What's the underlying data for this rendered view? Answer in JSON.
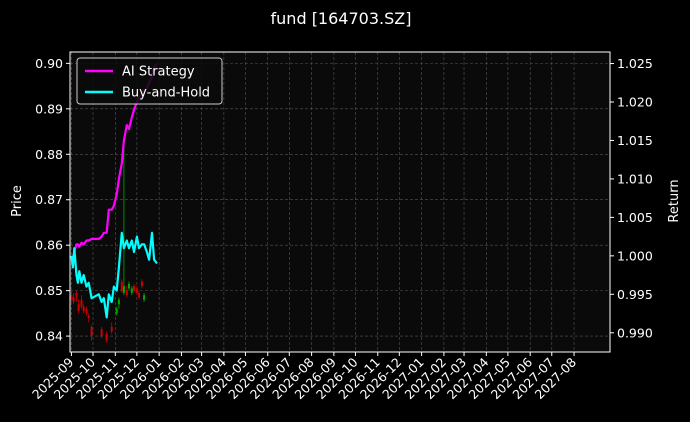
{
  "chart_data": {
    "type": "line",
    "title": "fund [164703.SZ]",
    "ylabel_left": "Price",
    "ylabel_right": "Return",
    "ylim_left": [
      0.8365,
      0.9025
    ],
    "ylim_right": [
      0.9875,
      1.0265
    ],
    "yticks_left": [
      0.84,
      0.85,
      0.86,
      0.87,
      0.88,
      0.89,
      0.9
    ],
    "yticks_left_labels": [
      "0.84",
      "0.85",
      "0.86",
      "0.87",
      "0.88",
      "0.89",
      "0.90"
    ],
    "yticks_right": [
      0.99,
      0.995,
      1.0,
      1.005,
      1.01,
      1.015,
      1.02,
      1.025
    ],
    "yticks_right_labels": [
      "0.990",
      "0.995",
      "1.000",
      "1.005",
      "1.010",
      "1.015",
      "1.020",
      "1.025"
    ],
    "xlim": [
      "2025-08-30",
      "2027-09-20"
    ],
    "xticks": [
      "2025-09",
      "2025-10",
      "2025-11",
      "2025-12",
      "2026-01",
      "2026-02",
      "2026-03",
      "2026-04",
      "2026-05",
      "2026-06",
      "2026-07",
      "2026-08",
      "2026-09",
      "2026-10",
      "2026-11",
      "2026-12",
      "2027-01",
      "2027-02",
      "2027-03",
      "2027-04",
      "2027-05",
      "2027-06",
      "2027-07",
      "2027-08"
    ],
    "grid": true,
    "legend_position": "top-left",
    "background": "#0a0a0a",
    "series": [
      {
        "name": "AI Strategy",
        "color": "#ff00ff",
        "axis": "right",
        "x": [
          "2025-09-01",
          "2025-09-03",
          "2025-09-05",
          "2025-09-08",
          "2025-09-10",
          "2025-09-12",
          "2025-09-15",
          "2025-09-18",
          "2025-09-22",
          "2025-09-25",
          "2025-09-29",
          "2025-10-09",
          "2025-10-13",
          "2025-10-16",
          "2025-10-20",
          "2025-10-23",
          "2025-10-27",
          "2025-10-30",
          "2025-11-03",
          "2025-11-06",
          "2025-11-10",
          "2025-11-13",
          "2025-11-17",
          "2025-11-20",
          "2025-11-24",
          "2025-11-27",
          "2025-12-01",
          "2025-12-04",
          "2025-12-08",
          "2025-12-11",
          "2025-12-15",
          "2025-12-18",
          "2025-12-22",
          "2025-12-25",
          "2025-12-29"
        ],
        "values": [
          1.0,
          0.9995,
          1.0005,
          1.0015,
          1.0015,
          1.0012,
          1.0017,
          1.0015,
          1.002,
          1.002,
          1.0022,
          1.0022,
          1.0025,
          1.003,
          1.003,
          1.006,
          1.006,
          1.0065,
          1.008,
          1.01,
          1.012,
          1.015,
          1.017,
          1.0165,
          1.018,
          1.019,
          1.02,
          1.0205,
          1.021,
          1.0215,
          1.0218,
          1.0225,
          1.0232,
          1.0245,
          1.025
        ]
      },
      {
        "name": "Buy-and-Hold",
        "color": "#00ffff",
        "axis": "right",
        "x": [
          "2025-09-01",
          "2025-09-03",
          "2025-09-05",
          "2025-09-08",
          "2025-09-10",
          "2025-09-12",
          "2025-09-15",
          "2025-09-18",
          "2025-09-22",
          "2025-09-25",
          "2025-09-29",
          "2025-10-09",
          "2025-10-13",
          "2025-10-16",
          "2025-10-20",
          "2025-10-23",
          "2025-10-27",
          "2025-10-30",
          "2025-11-03",
          "2025-11-06",
          "2025-11-10",
          "2025-11-13",
          "2025-11-17",
          "2025-11-20",
          "2025-11-24",
          "2025-11-27",
          "2025-12-01",
          "2025-12-04",
          "2025-12-08",
          "2025-12-11",
          "2025-12-15",
          "2025-12-18",
          "2025-12-22",
          "2025-12-25",
          "2025-12-29"
        ],
        "values": [
          1.0,
          0.9985,
          1.001,
          0.9975,
          0.9965,
          0.998,
          0.9965,
          0.9975,
          0.996,
          0.9965,
          0.9945,
          0.995,
          0.994,
          0.9945,
          0.992,
          0.995,
          0.994,
          0.996,
          0.9955,
          0.9985,
          1.003,
          1.001,
          1.002,
          1.001,
          1.002,
          1.0005,
          1.0025,
          1.001,
          1.0015,
          1.0015,
          1.0005,
          0.9995,
          1.003,
          0.9995,
          0.999
        ]
      }
    ],
    "candles": [
      {
        "date": "2025-09-01",
        "open": 0.849,
        "close": 0.848,
        "high": 0.85,
        "low": 0.8475,
        "color": "#cc0000"
      },
      {
        "date": "2025-09-04",
        "open": 0.8485,
        "close": 0.8475,
        "high": 0.8495,
        "low": 0.847,
        "color": "#cc0000"
      },
      {
        "date": "2025-09-08",
        "open": 0.8495,
        "close": 0.8485,
        "high": 0.85,
        "low": 0.8475,
        "color": "#cc0000"
      },
      {
        "date": "2025-09-11",
        "open": 0.847,
        "close": 0.8455,
        "high": 0.848,
        "low": 0.845,
        "color": "#cc0000"
      },
      {
        "date": "2025-09-15",
        "open": 0.848,
        "close": 0.8465,
        "high": 0.849,
        "low": 0.846,
        "color": "#cc0000"
      },
      {
        "date": "2025-09-18",
        "open": 0.8465,
        "close": 0.8455,
        "high": 0.847,
        "low": 0.845,
        "color": "#cc0000"
      },
      {
        "date": "2025-09-22",
        "open": 0.846,
        "close": 0.845,
        "high": 0.8465,
        "low": 0.8445,
        "color": "#cc0000"
      },
      {
        "date": "2025-09-25",
        "open": 0.8445,
        "close": 0.844,
        "high": 0.845,
        "low": 0.843,
        "color": "#cc0000"
      },
      {
        "date": "2025-09-29",
        "open": 0.842,
        "close": 0.84,
        "high": 0.8425,
        "low": 0.839,
        "color": "#cc0000"
      },
      {
        "date": "2025-10-13",
        "open": 0.8415,
        "close": 0.84,
        "high": 0.842,
        "low": 0.8395,
        "color": "#cc0000"
      },
      {
        "date": "2025-10-20",
        "open": 0.8405,
        "close": 0.839,
        "high": 0.841,
        "low": 0.8385,
        "color": "#cc0000"
      },
      {
        "date": "2025-10-27",
        "open": 0.842,
        "close": 0.841,
        "high": 0.843,
        "low": 0.8405,
        "color": "#cc0000"
      },
      {
        "date": "2025-11-03",
        "open": 0.845,
        "close": 0.846,
        "high": 0.8465,
        "low": 0.8445,
        "color": "#00aa00"
      },
      {
        "date": "2025-11-06",
        "open": 0.847,
        "close": 0.848,
        "high": 0.8485,
        "low": 0.846,
        "color": "#00aa00"
      },
      {
        "date": "2025-11-10",
        "open": 0.85,
        "close": 0.852,
        "high": 0.8525,
        "low": 0.8495,
        "color": "#cc0000"
      },
      {
        "date": "2025-11-13",
        "open": 0.8495,
        "close": 0.851,
        "high": 0.884,
        "low": 0.849,
        "color": "#00aa00"
      },
      {
        "date": "2025-11-17",
        "open": 0.85,
        "close": 0.849,
        "high": 0.851,
        "low": 0.8485,
        "color": "#cc0000"
      },
      {
        "date": "2025-11-20",
        "open": 0.8505,
        "close": 0.8515,
        "high": 0.852,
        "low": 0.85,
        "color": "#00aa00"
      },
      {
        "date": "2025-11-24",
        "open": 0.8495,
        "close": 0.8505,
        "high": 0.851,
        "low": 0.849,
        "color": "#00aa00"
      },
      {
        "date": "2025-11-27",
        "open": 0.851,
        "close": 0.85,
        "high": 0.8515,
        "low": 0.8495,
        "color": "#cc0000"
      },
      {
        "date": "2025-12-01",
        "open": 0.8505,
        "close": 0.8495,
        "high": 0.851,
        "low": 0.849,
        "color": "#cc0000"
      },
      {
        "date": "2025-12-04",
        "open": 0.8495,
        "close": 0.8485,
        "high": 0.85,
        "low": 0.848,
        "color": "#cc0000"
      },
      {
        "date": "2025-12-08",
        "open": 0.852,
        "close": 0.851,
        "high": 0.8525,
        "low": 0.8505,
        "color": "#cc0000"
      },
      {
        "date": "2025-12-11",
        "open": 0.848,
        "close": 0.849,
        "high": 0.8495,
        "low": 0.8475,
        "color": "#00aa00"
      }
    ]
  }
}
